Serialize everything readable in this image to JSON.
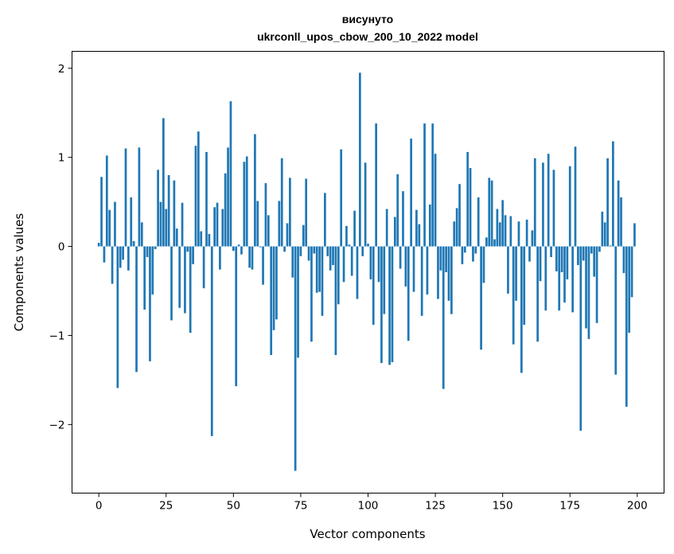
{
  "chart_data": {
    "type": "bar",
    "title_line1": "висунуто",
    "title_line2": "ukrconll_upos_cbow_200_10_2022 model",
    "xlabel": "Vector components",
    "ylabel": "Components values",
    "xlim": [
      -9.95,
      209.95
    ],
    "ylim": [
      -2.77,
      2.19
    ],
    "xticks": [
      0,
      25,
      50,
      75,
      100,
      125,
      150,
      175,
      200
    ],
    "xtick_labels": [
      "0",
      "25",
      "50",
      "75",
      "100",
      "125",
      "150",
      "175",
      "200"
    ],
    "yticks": [
      -2,
      -1,
      0,
      1,
      2
    ],
    "ytick_labels": [
      "−2",
      "−1",
      "0",
      "1",
      "2"
    ],
    "grid": false,
    "bar_color": "#1f77b4",
    "values": [
      0.04,
      0.78,
      -0.18,
      1.02,
      0.41,
      -0.42,
      0.5,
      -1.59,
      -0.24,
      -0.15,
      1.1,
      -0.27,
      0.55,
      0.06,
      -1.41,
      1.11,
      0.27,
      -0.71,
      -0.12,
      -1.29,
      -0.54,
      -0.03,
      0.86,
      0.5,
      1.44,
      0.42,
      0.8,
      -0.83,
      0.74,
      0.2,
      -0.69,
      0.49,
      -0.75,
      -0.06,
      -0.97,
      -0.2,
      1.13,
      1.29,
      0.17,
      -0.47,
      1.06,
      0.14,
      -2.13,
      0.44,
      0.49,
      -0.26,
      0.42,
      0.82,
      1.11,
      1.63,
      -0.05,
      -1.57,
      0.02,
      -0.09,
      0.95,
      1.01,
      -0.24,
      -0.26,
      1.26,
      0.51,
      -0.01,
      -0.43,
      0.71,
      0.35,
      -1.22,
      -0.94,
      -0.82,
      0.51,
      0.99,
      -0.06,
      0.26,
      0.77,
      -0.35,
      -2.52,
      -1.25,
      -0.11,
      0.24,
      0.76,
      -0.16,
      -1.07,
      -0.08,
      -0.52,
      -0.51,
      -0.78,
      0.6,
      -0.11,
      -0.27,
      -0.21,
      -1.22,
      -0.65,
      1.09,
      -0.4,
      0.23,
      0.02,
      -0.33,
      0.4,
      -0.59,
      1.95,
      -0.11,
      0.94,
      0.03,
      -0.37,
      -0.88,
      1.38,
      -0.4,
      -1.31,
      -0.76,
      0.42,
      -1.33,
      -1.3,
      0.33,
      0.81,
      -0.25,
      0.62,
      -0.45,
      -1.06,
      1.21,
      -0.51,
      0.41,
      0.25,
      -0.78,
      1.38,
      -0.54,
      0.47,
      1.38,
      1.04,
      -0.59,
      -0.27,
      -1.6,
      -0.29,
      -0.61,
      -0.76,
      0.28,
      0.43,
      0.7,
      -0.2,
      -0.07,
      1.06,
      0.88,
      -0.17,
      -0.08,
      0.55,
      -1.16,
      -0.41,
      0.1,
      0.77,
      0.74,
      0.08,
      0.42,
      0.27,
      0.52,
      0.35,
      -0.53,
      0.34,
      -1.1,
      -0.61,
      0.28,
      -1.42,
      -0.88,
      0.3,
      -0.17,
      0.18,
      0.99,
      -1.07,
      -0.39,
      0.94,
      -0.72,
      1.04,
      -0.12,
      0.86,
      -0.28,
      -0.72,
      -0.29,
      -0.63,
      -0.37,
      0.9,
      -0.74,
      1.12,
      -0.21,
      -2.07,
      -0.16,
      -0.92,
      -1.04,
      -0.08,
      -0.34,
      -0.86,
      -0.06,
      0.39,
      0.27,
      0.99,
      0.01,
      1.18,
      -1.44,
      0.74,
      0.55,
      -0.3,
      -1.8,
      -0.97,
      -0.57,
      0.26
    ]
  }
}
